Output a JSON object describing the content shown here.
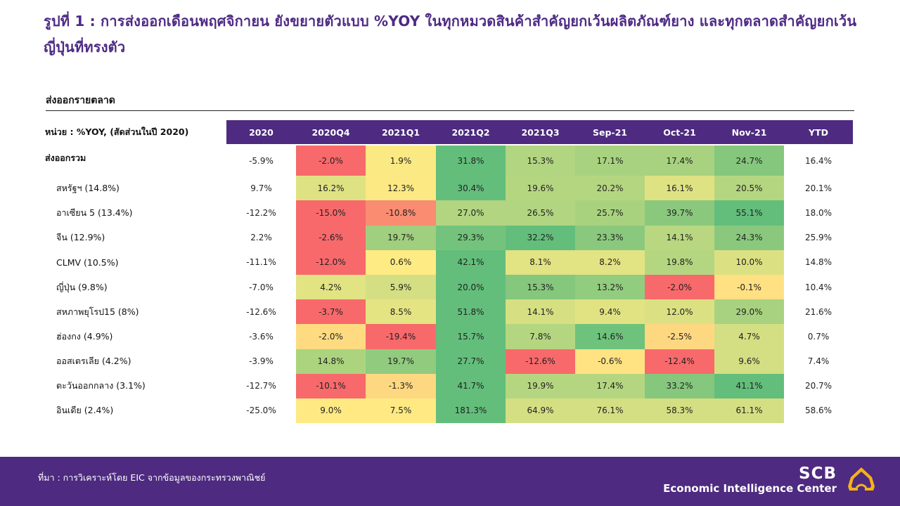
{
  "title": "รูปที่ 1 : การส่งออกเดือนพฤศจิกายน ยังขยายตัวแบบ %YOY ในทุกหมวดสินค้าสำคัญยกเว้นผลิตภัณฑ์ยาง และทุกตลาดสำคัญยกเว้นญี่ปุ่นที่ทรงตัว",
  "section_title": "ส่งออกรายตลาด",
  "footer": {
    "source": "ที่มา : การวิเคราะห์โดย EIC จากข้อมูลของกระทรวงพาณิชย์",
    "brand_top": "SCB",
    "brand_bottom": "Economic Intelligence Center"
  },
  "colors": {
    "header_bg": "#4e2a80",
    "title": "#4e2a84",
    "scale_low": "#f8696b",
    "scale_mid": "#ffeb84",
    "scale_high": "#63be7b",
    "logo": "#f5b21a"
  },
  "chart_data": {
    "type": "heatmap",
    "title": "ส่งออกรายตลาด",
    "unit_label": "หน่วย : %YOY, (สัดส่วนในปี 2020)",
    "columns": [
      "2020",
      "2020Q4",
      "2021Q1",
      "2021Q2",
      "2021Q3",
      "Sep-21",
      "Oct-21",
      "Nov-21",
      "YTD"
    ],
    "heat_columns": [
      "2020Q4",
      "2021Q1",
      "2021Q2",
      "2021Q3",
      "Sep-21",
      "Oct-21",
      "Nov-21"
    ],
    "rows": [
      {
        "label": "ส่งออกรวม",
        "values": [
          "-5.9%",
          "-2.0%",
          "1.9%",
          "31.8%",
          "15.3%",
          "17.1%",
          "17.4%",
          "24.7%",
          "16.4%"
        ],
        "colors": [
          "#f8696b",
          "#fbe983",
          "#63be7b",
          "#b1d580",
          "#a8d27f",
          "#a8d27f",
          "#85c77d"
        ]
      },
      {
        "label": "สหรัฐฯ (14.8%)",
        "values": [
          "9.7%",
          "16.2%",
          "12.3%",
          "30.4%",
          "19.6%",
          "20.2%",
          "16.1%",
          "20.5%",
          "20.1%"
        ],
        "colors": [
          "#dfe283",
          "#fce983",
          "#63be7b",
          "#b5d680",
          "#b5d680",
          "#dfe283",
          "#b5d680"
        ]
      },
      {
        "label": "อาเซียน 5 (13.4%)",
        "values": [
          "-12.2%",
          "-15.0%",
          "-10.8%",
          "27.0%",
          "26.5%",
          "25.7%",
          "39.7%",
          "55.1%",
          "18.0%"
        ],
        "colors": [
          "#f8696b",
          "#fa8c72",
          "#b1d580",
          "#b1d580",
          "#a9d27f",
          "#8ac97d",
          "#63be7b"
        ]
      },
      {
        "label": "จีน (12.9%)",
        "values": [
          "2.2%",
          "-2.6%",
          "19.7%",
          "29.3%",
          "32.2%",
          "23.3%",
          "14.1%",
          "24.3%",
          "25.9%"
        ],
        "colors": [
          "#f8696b",
          "#a0cf7f",
          "#74c37c",
          "#63be7b",
          "#8ac97d",
          "#b8d780",
          "#8ac97d"
        ]
      },
      {
        "label": "CLMV (10.5%)",
        "values": [
          "-11.1%",
          "-12.0%",
          "0.6%",
          "42.1%",
          "8.1%",
          "8.2%",
          "19.8%",
          "10.0%",
          "14.8%"
        ],
        "colors": [
          "#f8696b",
          "#ffeb84",
          "#63be7b",
          "#e2e383",
          "#e2e383",
          "#b5d680",
          "#dbe182"
        ]
      },
      {
        "label": "ญี่ปุ่น (9.8%)",
        "values": [
          "-7.0%",
          "4.2%",
          "5.9%",
          "20.0%",
          "15.3%",
          "13.2%",
          "-2.0%",
          "-0.1%",
          "10.4%"
        ],
        "colors": [
          "#e2e383",
          "#d3df82",
          "#63be7b",
          "#85c77d",
          "#92cc7e",
          "#f8696b",
          "#ffe083"
        ]
      },
      {
        "label": "สหภาพยุโรป15 (8%)",
        "values": [
          "-12.6%",
          "-3.7%",
          "8.5%",
          "51.8%",
          "14.1%",
          "9.4%",
          "12.0%",
          "29.0%",
          "21.6%"
        ],
        "colors": [
          "#f8696b",
          "#e5e483",
          "#63be7b",
          "#d6e082",
          "#e1e383",
          "#dbe182",
          "#a8d27f"
        ]
      },
      {
        "label": "ฮ่องกง (4.9%)",
        "values": [
          "-3.6%",
          "-2.0%",
          "-19.4%",
          "15.7%",
          "7.8%",
          "14.6%",
          "-2.5%",
          "4.7%",
          "0.7%"
        ],
        "colors": [
          "#fedb80",
          "#f8696b",
          "#63be7b",
          "#b5d680",
          "#6ec27c",
          "#fed880",
          "#d3df82"
        ]
      },
      {
        "label": "ออสเตรเลีย (4.2%)",
        "values": [
          "-3.9%",
          "14.8%",
          "19.7%",
          "27.7%",
          "-12.6%",
          "-0.6%",
          "-12.4%",
          "9.6%",
          "7.4%"
        ],
        "colors": [
          "#acd47f",
          "#90cb7e",
          "#63be7b",
          "#f8696b",
          "#ffe383",
          "#f8696b",
          "#d3df82"
        ]
      },
      {
        "label": "ตะวันออกกลาง (3.1%)",
        "values": [
          "-12.7%",
          "-10.1%",
          "-1.3%",
          "41.7%",
          "19.9%",
          "17.4%",
          "33.2%",
          "41.1%",
          "20.7%"
        ],
        "colors": [
          "#f8696b",
          "#fed880",
          "#63be7b",
          "#b5d680",
          "#b5d680",
          "#85c77d",
          "#63be7b"
        ]
      },
      {
        "label": "อินเดีย (2.4%)",
        "values": [
          "-25.0%",
          "9.0%",
          "7.5%",
          "181.3%",
          "64.9%",
          "76.1%",
          "58.3%",
          "61.1%",
          "58.6%"
        ],
        "colors": [
          "#ffe983",
          "#ffe983",
          "#63be7b",
          "#d3df82",
          "#d3df82",
          "#d3df82",
          "#d3df82"
        ]
      }
    ]
  }
}
